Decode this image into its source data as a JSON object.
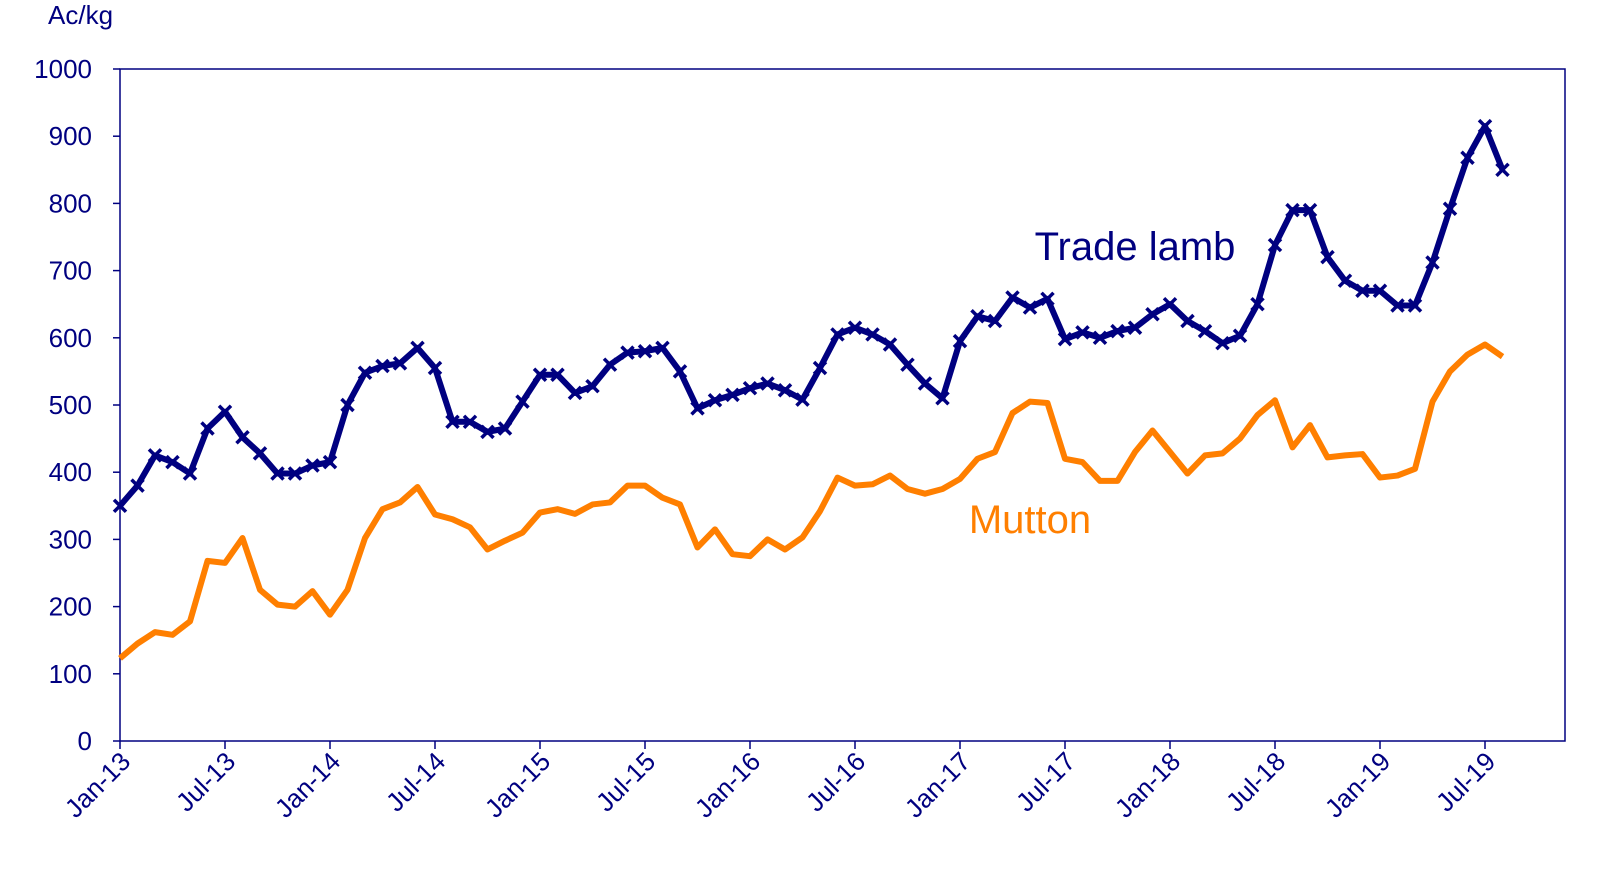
{
  "chart_data": {
    "type": "line",
    "y_label": "Ac/kg",
    "categories": [
      "Jan-13",
      null,
      null,
      null,
      null,
      null,
      "Jul-13",
      null,
      null,
      null,
      null,
      null,
      "Jan-14",
      null,
      null,
      null,
      null,
      null,
      "Jul-14",
      null,
      null,
      null,
      null,
      null,
      "Jan-15",
      null,
      null,
      null,
      null,
      null,
      "Jul-15",
      null,
      null,
      null,
      null,
      null,
      "Jan-16",
      null,
      null,
      null,
      null,
      null,
      "Jul-16",
      null,
      null,
      null,
      null,
      null,
      "Jan-17",
      null,
      null,
      null,
      null,
      null,
      "Jul-17",
      null,
      null,
      null,
      null,
      null,
      "Jan-18",
      null,
      null,
      null,
      null,
      null,
      "Jul-18",
      null,
      null,
      null,
      null,
      null,
      "Jan-19",
      null,
      null,
      null,
      null,
      null,
      "Jul-19",
      null
    ],
    "series": [
      {
        "name": "Trade lamb",
        "color": "#000080",
        "marker": "x",
        "values": [
          350,
          380,
          425,
          415,
          398,
          465,
          490,
          452,
          428,
          398,
          398,
          410,
          415,
          500,
          548,
          558,
          562,
          585,
          555,
          475,
          475,
          460,
          465,
          505,
          545,
          545,
          518,
          528,
          560,
          578,
          580,
          585,
          550,
          495,
          507,
          515,
          525,
          532,
          522,
          508,
          555,
          605,
          615,
          605,
          590,
          560,
          532,
          510,
          595,
          632,
          625,
          660,
          645,
          658,
          598,
          608,
          600,
          610,
          615,
          635,
          650,
          625,
          610,
          592,
          603,
          650,
          738,
          790,
          790,
          720,
          685,
          670,
          670,
          648,
          648,
          712,
          792,
          868,
          915,
          850
        ]
      },
      {
        "name": "Mutton",
        "color": "#ff7f00",
        "values": [
          123,
          145,
          162,
          158,
          178,
          268,
          265,
          302,
          225,
          203,
          200,
          223,
          188,
          225,
          302,
          345,
          355,
          378,
          337,
          330,
          318,
          285,
          298,
          310,
          340,
          345,
          338,
          352,
          355,
          380,
          380,
          362,
          352,
          288,
          315,
          278,
          275,
          300,
          285,
          303,
          342,
          392,
          380,
          382,
          395,
          375,
          368,
          375,
          390,
          420,
          430,
          488,
          505,
          503,
          420,
          415,
          387,
          387,
          430,
          462,
          430,
          398,
          425,
          428,
          450,
          485,
          507,
          437,
          470,
          422,
          425,
          427,
          392,
          395,
          405,
          505,
          550,
          575,
          590,
          572
        ]
      }
    ],
    "ylim": [
      0,
      1000
    ],
    "yticks": [
      0,
      100,
      200,
      300,
      400,
      500,
      600,
      700,
      800,
      900,
      1000
    ]
  }
}
